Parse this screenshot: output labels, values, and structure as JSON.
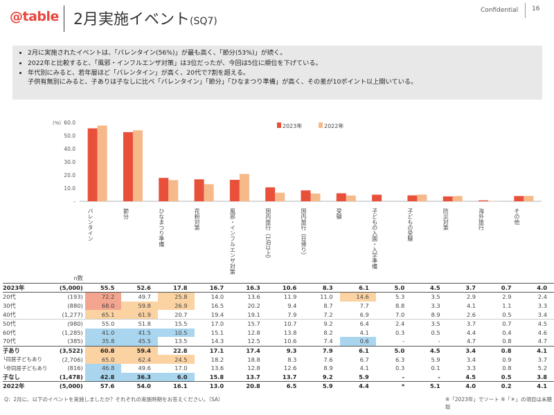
{
  "header": {
    "logo": "@table",
    "title": "2月実施イベント",
    "title_suffix": "(SQ7)",
    "confidential": "Confidential",
    "page": "16"
  },
  "summary": [
    "2月に実施されたイベントは、「バレンタイン(56%)」が最も高く、「節分(53%)」が続く。",
    "2022年と比較すると、「風邪・インフルエンザ対策」は3位だったが、今回は5位に順位を下げている。",
    "年代別にみると、若年層ほど「バレンタイン」が高く、20代で7割を超える。",
    "子供有無別にみると、子ありは子なしに比べ「バレンタイン」「節分」「ひなまつり準備」が高く、その差が10ポイント以上開いている。"
  ],
  "chart_data": {
    "type": "bar",
    "unit": "(%)",
    "ylim": [
      0,
      60
    ],
    "yticks": [
      "60.0",
      "50.0",
      "40.0",
      "30.0",
      "20.0",
      "10.0",
      "-"
    ],
    "categories": [
      "バレンタイン",
      "節分",
      "ひなまつり準備",
      "花粉対策",
      "風邪・インフルエンザ対策",
      "国内旅行（1泊以上）",
      "国内旅行（日帰り）",
      "受験",
      "子どもの入園・入学準備",
      "子どもの受験",
      "防災対策",
      "海外旅行",
      "その他"
    ],
    "series": [
      {
        "name": "2023年",
        "color": "#e8503a",
        "values": [
          55.5,
          52.6,
          17.8,
          16.7,
          16.3,
          10.6,
          8.3,
          6.1,
          5.0,
          4.5,
          3.7,
          0.7,
          4.0
        ]
      },
      {
        "name": "2022年",
        "color": "#f5b98a",
        "values": [
          57.6,
          54.0,
          16.1,
          13.0,
          20.8,
          6.5,
          5.9,
          4.4,
          null,
          5.1,
          4.0,
          0.2,
          4.1
        ]
      }
    ],
    "legend": "top"
  },
  "table": {
    "n_header": "n数",
    "rows": [
      {
        "label": "2023年",
        "n": "(5,000)",
        "values": [
          "55.5",
          "52.6",
          "17.8",
          "16.7",
          "16.3",
          "10.6",
          "8.3",
          "6.1",
          "5.0",
          "4.5",
          "3.7",
          "0.7",
          "4.0"
        ],
        "style": "bold"
      },
      {
        "label": "20代",
        "n": "(193)",
        "values": [
          "72.2",
          "49.7",
          "25.8",
          "14.0",
          "13.6",
          "11.9",
          "11.0",
          "14.6",
          "5.3",
          "3.5",
          "2.9",
          "2.9",
          "2.4"
        ],
        "hl": [
          "r",
          "",
          "o",
          "",
          "",
          "",
          "",
          "o",
          "",
          "",
          "",
          "",
          ""
        ]
      },
      {
        "label": "30代",
        "n": "(880)",
        "values": [
          "68.0",
          "59.8",
          "26.9",
          "16.5",
          "20.2",
          "9.4",
          "8.7",
          "7.7",
          "8.8",
          "3.3",
          "4.1",
          "1.1",
          "3.3"
        ],
        "hl": [
          "r",
          "o",
          "o",
          "",
          "",
          "",
          "",
          "",
          "",
          "",
          "",
          "",
          ""
        ]
      },
      {
        "label": "40代",
        "n": "(1,277)",
        "values": [
          "65.1",
          "61.9",
          "20.7",
          "19.4",
          "19.1",
          "7.9",
          "7.2",
          "6.9",
          "7.0",
          "8.9",
          "2.6",
          "0.5",
          "3.4"
        ],
        "hl": [
          "o",
          "o",
          "",
          "",
          "",
          "",
          "",
          "",
          "",
          "",
          "",
          "",
          ""
        ]
      },
      {
        "label": "50代",
        "n": "(980)",
        "values": [
          "55.0",
          "51.8",
          "15.5",
          "17.0",
          "15.7",
          "10.7",
          "9.2",
          "6.4",
          "2.4",
          "3.5",
          "3.7",
          "0.7",
          "4.5"
        ]
      },
      {
        "label": "60代",
        "n": "(1,285)",
        "values": [
          "41.0",
          "41.5",
          "10.5",
          "15.1",
          "12.8",
          "13.8",
          "8.2",
          "4.1",
          "0.3",
          "0.5",
          "4.4",
          "0.4",
          "4.6"
        ],
        "hl": [
          "b",
          "b",
          "b",
          "",
          "",
          "",
          "",
          "",
          "",
          "",
          "",
          "",
          ""
        ]
      },
      {
        "label": "70代",
        "n": "(385)",
        "values": [
          "35.8",
          "45.5",
          "13.5",
          "14.3",
          "12.5",
          "10.6",
          "7.4",
          "0.6",
          "-",
          "-",
          "4.7",
          "0.8",
          "4.7"
        ],
        "hl": [
          "b",
          "b",
          "",
          "",
          "",
          "",
          "",
          "b",
          "",
          "",
          "",
          "",
          ""
        ]
      },
      {
        "label": "子あり",
        "n": "(3,522)",
        "values": [
          "60.8",
          "59.4",
          "22.8",
          "17.1",
          "17.4",
          "9.3",
          "7.9",
          "6.1",
          "5.0",
          "4.5",
          "3.4",
          "0.8",
          "4.1"
        ],
        "style": "bold",
        "hl": [
          "o",
          "o",
          "",
          "",
          "",
          "",
          "",
          "",
          "",
          "",
          "",
          "",
          ""
        ]
      },
      {
        "label": "└同居子どもあり",
        "n": "(2,706)",
        "values": [
          "65.0",
          "62.4",
          "24.5",
          "18.2",
          "18.8",
          "8.3",
          "7.6",
          "6.7",
          "6.3",
          "5.9",
          "3.4",
          "0.9",
          "3.7"
        ],
        "hl": [
          "o",
          "o",
          "o",
          "",
          "",
          "",
          "",
          "",
          "",
          "",
          "",
          "",
          ""
        ]
      },
      {
        "label": "└非同居子どもあり",
        "n": "(816)",
        "values": [
          "46.8",
          "49.6",
          "17.0",
          "13.6",
          "12.8",
          "12.6",
          "8.9",
          "4.1",
          "0.3",
          "0.1",
          "3.3",
          "0.8",
          "5.2"
        ],
        "hl": [
          "b",
          "",
          "",
          "",
          "",
          "",
          "",
          "",
          "",
          "",
          "",
          "",
          ""
        ]
      },
      {
        "label": "子なし",
        "n": "(1,478)",
        "values": [
          "42.8",
          "36.3",
          "6.0",
          "15.8",
          "13.7",
          "13.7",
          "9.2",
          "5.9",
          "-",
          "-",
          "4.5",
          "0.5",
          "3.8"
        ],
        "style": "bold",
        "hl": [
          "b",
          "b",
          "b",
          "",
          "",
          "",
          "",
          "",
          "",
          "",
          "",
          "",
          ""
        ]
      },
      {
        "label": "2022年",
        "n": "(5,000)",
        "values": [
          "57.6",
          "54.0",
          "16.1",
          "13.0",
          "20.8",
          "6.5",
          "5.9",
          "4.4",
          "*",
          "5.1",
          "4.0",
          "0.2",
          "4.1"
        ],
        "style": "bold"
      }
    ],
    "colors": {
      "r": "#f4a58f",
      "o": "#fbd2a2",
      "b": "#a9d6ee"
    }
  },
  "footer": {
    "left": "Q：2月に、以下のイベントを実施しましたか？それぞれの実施時期をお答えください。（SA）",
    "right": "※「2023年」でソート ※「＊」の項目は未聴取"
  }
}
